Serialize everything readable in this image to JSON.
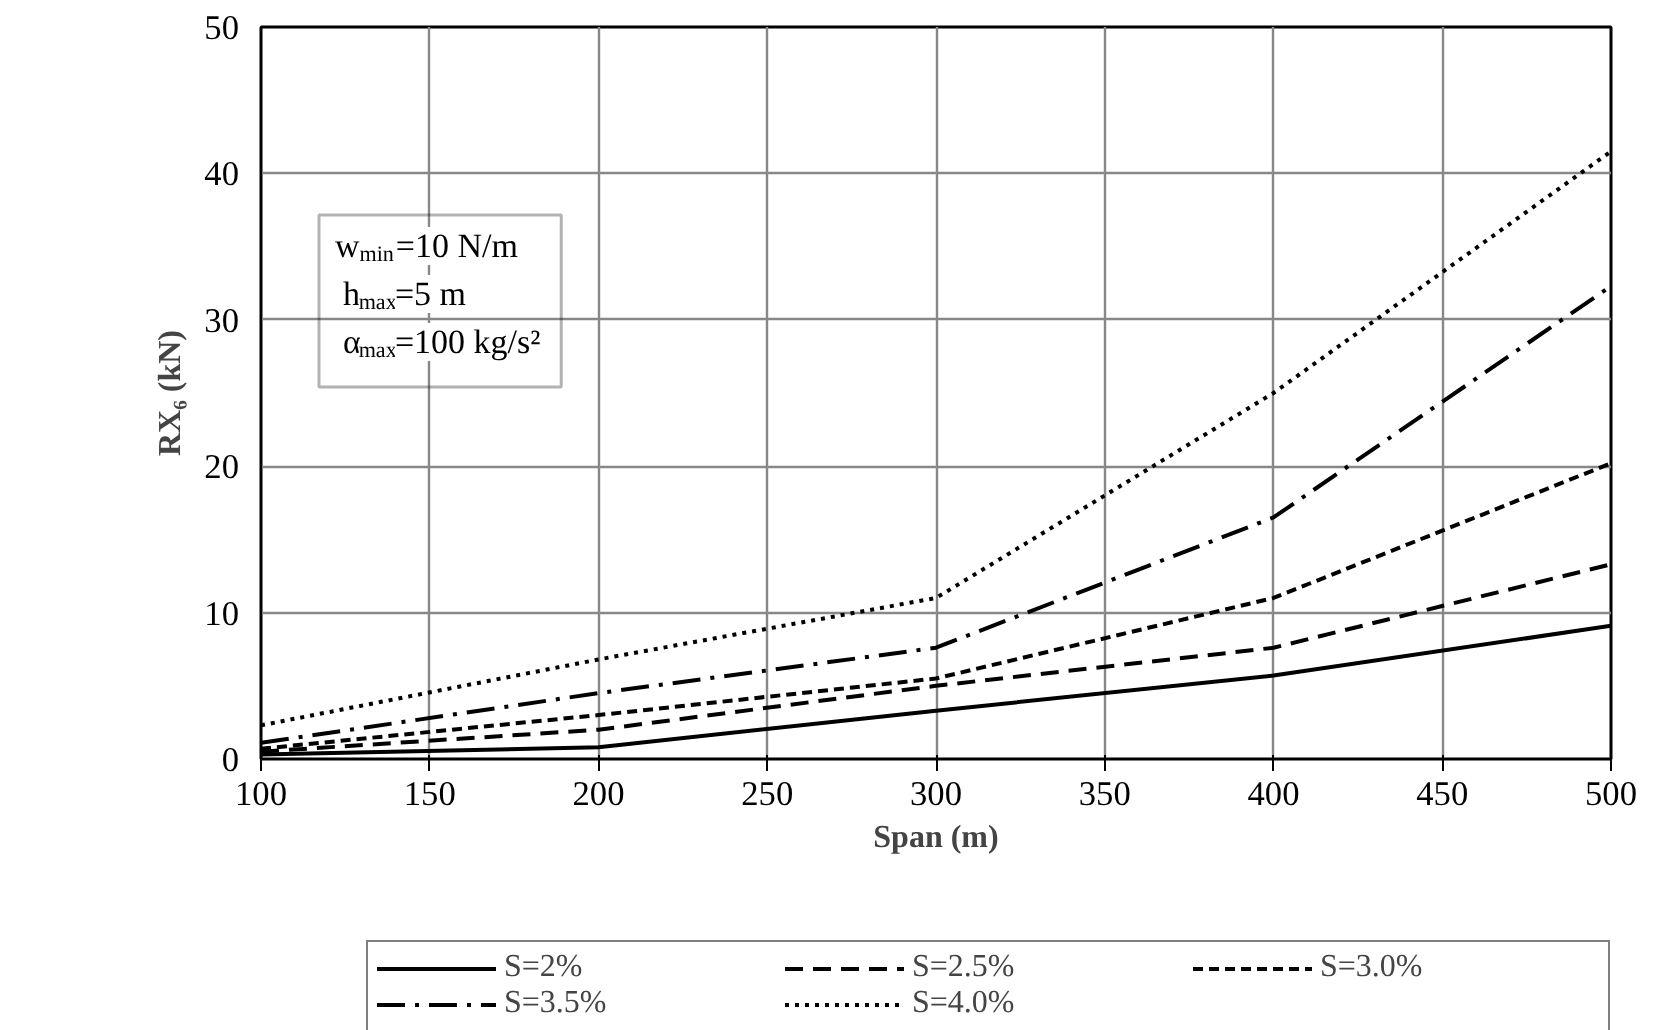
{
  "chart_data": {
    "type": "line",
    "xlabel": "Span (m)",
    "ylabel": "RX₆ (kN)",
    "x": [
      100,
      200,
      300,
      400,
      500
    ],
    "series": [
      {
        "name": "S=2%",
        "color": "#000000",
        "line_style": "solid",
        "values": [
          0.3,
          0.8,
          3.3,
          5.7,
          9.1
        ]
      },
      {
        "name": "S=2.5%",
        "color": "#000000",
        "line_style": "dashed",
        "values": [
          0.5,
          2.0,
          5.0,
          7.6,
          13.3
        ]
      },
      {
        "name": "S=3.0%",
        "color": "#000000",
        "line_style": "shortdash",
        "values": [
          0.7,
          3.0,
          5.5,
          11.0,
          20.2
        ]
      },
      {
        "name": "S=3.5%",
        "color": "#000000",
        "line_style": "dashdot",
        "values": [
          1.1,
          4.5,
          7.6,
          16.5,
          32.3
        ]
      },
      {
        "name": "S=4.0%",
        "color": "#000000",
        "line_style": "dotted",
        "values": [
          2.3,
          6.8,
          11.0,
          25.0,
          41.5
        ]
      }
    ],
    "xlim": [
      100,
      500
    ],
    "xticks": [
      100,
      150,
      200,
      250,
      300,
      350,
      400,
      450,
      500
    ],
    "ylim": [
      0,
      50
    ],
    "yticks": [
      0,
      10,
      20,
      30,
      40,
      50
    ],
    "grid": true,
    "legend": "bottom",
    "marker": "none",
    "annotations": [
      "w$_{min}$=10 N/m",
      "h$_{max}$=5 m",
      "α$_{max}$=100 kg/s²"
    ]
  }
}
